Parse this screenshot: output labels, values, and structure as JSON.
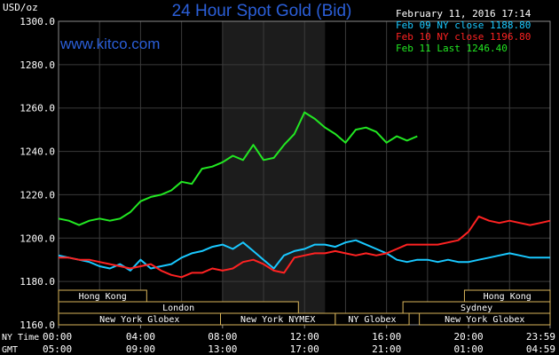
{
  "chart_data": {
    "type": "line",
    "title": "24 Hour Spot Gold (Bid)",
    "website": "www.kitco.com",
    "timestamp": "February 11, 2016 17:14",
    "y_unit": "USD/oz",
    "ylim": [
      1160,
      1300
    ],
    "y_ticks": [
      "1300.0",
      "1280.0",
      "1260.0",
      "1240.0",
      "1220.0",
      "1200.0",
      "1180.0",
      "1160.0"
    ],
    "x_row_labels": {
      "ny": "NY Time",
      "gmt": "GMT"
    },
    "x_ticks_ny": [
      "00:00",
      "04:00",
      "08:00",
      "12:00",
      "16:00",
      "20:00",
      "23:59"
    ],
    "x_ticks_gmt": [
      "05:00",
      "09:00",
      "13:00",
      "17:00",
      "21:00",
      "01:00",
      "04:59"
    ],
    "x_domain_hours": [
      0,
      23.98
    ],
    "shaded_hours": [
      8,
      13
    ],
    "grid": true,
    "legend_position": "top-right",
    "series": [
      {
        "name": "Feb 09 NY close 1188.80",
        "color": "#19c8ff",
        "x": [
          0,
          0.5,
          1,
          1.5,
          2,
          2.5,
          3,
          3.5,
          4,
          4.5,
          5,
          5.5,
          6,
          6.5,
          7,
          7.5,
          8,
          8.5,
          9,
          9.5,
          10,
          10.5,
          11,
          11.5,
          12,
          12.5,
          13,
          13.5,
          14,
          14.5,
          15,
          15.5,
          16,
          16.5,
          17,
          17.5,
          18,
          18.5,
          19,
          19.5,
          20,
          20.5,
          21,
          21.5,
          22,
          22.5,
          23,
          23.5,
          23.98
        ],
        "y": [
          1192,
          1191,
          1190,
          1189,
          1187,
          1186,
          1188,
          1185,
          1190,
          1186,
          1187,
          1188,
          1191,
          1193,
          1194,
          1196,
          1197,
          1195,
          1198,
          1194,
          1190,
          1186,
          1192,
          1194,
          1195,
          1197,
          1197,
          1196,
          1198,
          1199,
          1197,
          1195,
          1193,
          1190,
          1189,
          1190,
          1190,
          1189,
          1190,
          1189,
          1189,
          1190,
          1191,
          1192,
          1193,
          1192,
          1191,
          1191,
          1191
        ]
      },
      {
        "name": "Feb 10 NY close 1196.80",
        "color": "#ff2222",
        "x": [
          0,
          0.5,
          1,
          1.5,
          2,
          2.5,
          3,
          3.5,
          4,
          4.5,
          5,
          5.5,
          6,
          6.5,
          7,
          7.5,
          8,
          8.5,
          9,
          9.5,
          10,
          10.5,
          11,
          11.5,
          12,
          12.5,
          13,
          13.5,
          14,
          14.5,
          15,
          15.5,
          16,
          16.5,
          17,
          17.5,
          18,
          18.5,
          19,
          19.5,
          20,
          20.5,
          21,
          21.5,
          22,
          22.5,
          23,
          23.5,
          23.98
        ],
        "y": [
          1191,
          1191,
          1190,
          1190,
          1189,
          1188,
          1187,
          1186,
          1187,
          1188,
          1185,
          1183,
          1182,
          1184,
          1184,
          1186,
          1185,
          1186,
          1189,
          1190,
          1188,
          1185,
          1184,
          1191,
          1192,
          1193,
          1193,
          1194,
          1193,
          1192,
          1193,
          1192,
          1193,
          1195,
          1197,
          1197,
          1197,
          1197,
          1198,
          1199,
          1203,
          1210,
          1208,
          1207,
          1208,
          1207,
          1206,
          1207,
          1208
        ]
      },
      {
        "name": "Feb 11 Last 1246.40",
        "color": "#22e822",
        "x": [
          0,
          0.5,
          1,
          1.5,
          2,
          2.5,
          3,
          3.5,
          4,
          4.5,
          5,
          5.5,
          6,
          6.5,
          7,
          7.5,
          8,
          8.5,
          9,
          9.5,
          10,
          10.5,
          11,
          11.5,
          12,
          12.5,
          13,
          13.5,
          14,
          14.5,
          15,
          15.5,
          16,
          16.5,
          17,
          17.5
        ],
        "y": [
          1209,
          1208,
          1206,
          1208,
          1209,
          1208,
          1209,
          1212,
          1217,
          1219,
          1220,
          1222,
          1226,
          1225,
          1232,
          1233,
          1235,
          1238,
          1236,
          1243,
          1236,
          1237,
          1243,
          1248,
          1258,
          1255,
          1251,
          1248,
          1244,
          1250,
          1251,
          1249,
          1244,
          1247,
          1245,
          1247
        ]
      }
    ],
    "sessions": [
      {
        "label": "Hong Kong",
        "row": 0,
        "start": 0,
        "end": 4.3
      },
      {
        "label": "Hong Kong",
        "row": 0,
        "start": 19.8,
        "end": 23.98
      },
      {
        "label": "London",
        "row": 1,
        "start": 0,
        "end": 11.7
      },
      {
        "label": "Sydney",
        "row": 1,
        "start": 16.8,
        "end": 23.98
      },
      {
        "label": "New York Globex",
        "row": 2,
        "start": 0,
        "end": 7.9
      },
      {
        "label": "New York NYMEX",
        "row": 2,
        "start": 7.9,
        "end": 13.5
      },
      {
        "label": "NY Globex",
        "row": 2,
        "start": 13.5,
        "end": 17.1
      },
      {
        "label": "New York Globex",
        "row": 2,
        "start": 17.6,
        "end": 23.98
      }
    ],
    "colors": {
      "background": "#000000",
      "grid": "#3a3a3a",
      "shade": "#1c1c1c",
      "title": "#2b5fd9",
      "session_border": "#d8b45a",
      "text": "#ffffff"
    }
  }
}
